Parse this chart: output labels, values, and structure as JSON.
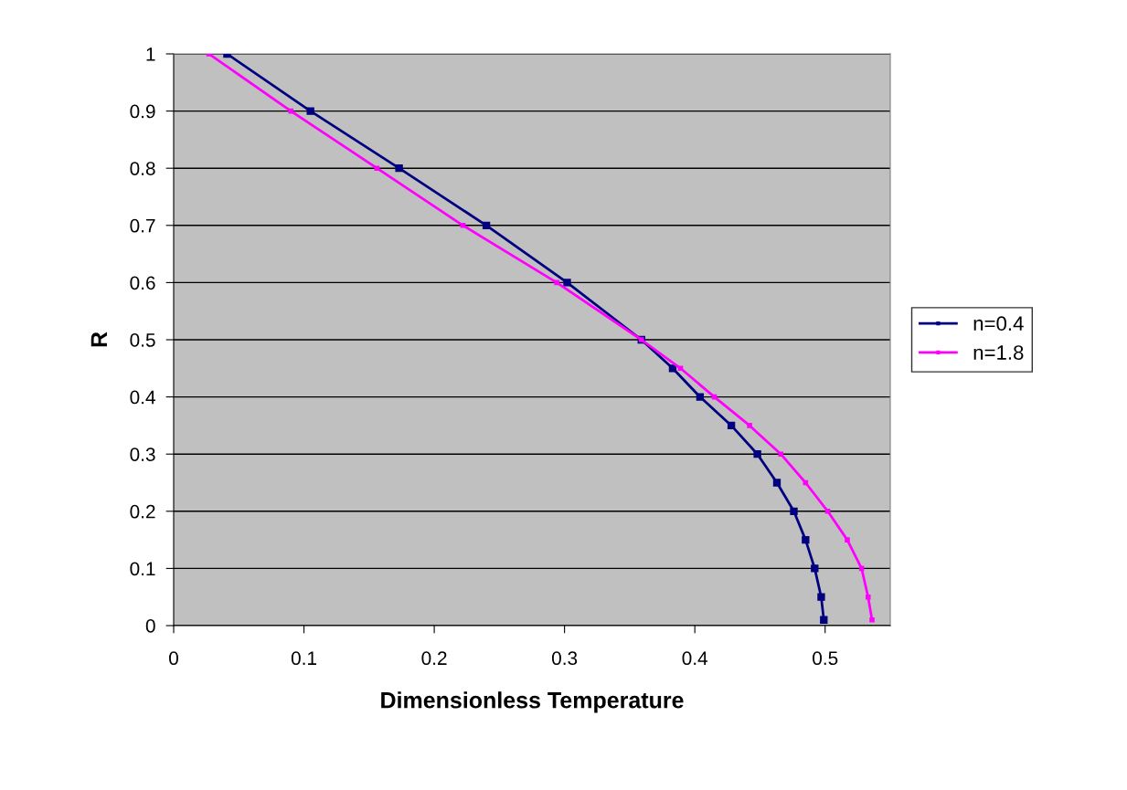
{
  "chart_data": {
    "type": "line",
    "xlabel": "Dimensionless Temperature",
    "ylabel": "R",
    "xlim": [
      0,
      0.55
    ],
    "xticks": [
      0,
      0.1,
      0.2,
      0.3,
      0.4,
      0.5
    ],
    "ylim": [
      0,
      1
    ],
    "yticks": [
      0,
      0.1,
      0.2,
      0.3,
      0.4,
      0.5,
      0.6,
      0.7,
      0.8,
      0.9,
      1
    ],
    "grid": "y",
    "legend": "right",
    "marker": "square",
    "line_style": "solid",
    "series": [
      {
        "name": "n=0.4",
        "color": "#000080",
        "x": [
          0.041,
          0.105,
          0.173,
          0.24,
          0.302,
          0.359,
          0.383,
          0.404,
          0.428,
          0.448,
          0.463,
          0.476,
          0.485,
          0.492,
          0.497,
          0.499
        ],
        "values": [
          1,
          0.9,
          0.8,
          0.7,
          0.6,
          0.5,
          0.45,
          0.4,
          0.35,
          0.3,
          0.25,
          0.2,
          0.15,
          0.1,
          0.05,
          0.01
        ]
      },
      {
        "name": "n=1.8",
        "color": "#ff00ff",
        "x": [
          0.027,
          0.09,
          0.156,
          0.222,
          0.294,
          0.359,
          0.389,
          0.415,
          0.442,
          0.466,
          0.485,
          0.502,
          0.517,
          0.528,
          0.533,
          0.536
        ],
        "values": [
          1,
          0.9,
          0.8,
          0.7,
          0.6,
          0.5,
          0.45,
          0.4,
          0.35,
          0.3,
          0.25,
          0.2,
          0.15,
          0.1,
          0.05,
          0.01
        ]
      }
    ]
  }
}
